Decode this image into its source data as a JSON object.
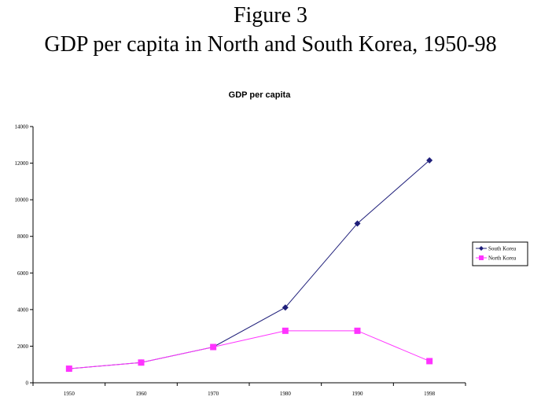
{
  "figure": {
    "title": "Figure 3",
    "subtitle": "GDP per capita in North and South Korea, 1950-98"
  },
  "chart_data": {
    "type": "line",
    "title": "GDP per capita",
    "xlabel": "",
    "ylabel": "",
    "categories": [
      "1950",
      "1960",
      "1970",
      "1980",
      "1990",
      "1998"
    ],
    "ylim": [
      0,
      14000
    ],
    "yticks": [
      0,
      2000,
      4000,
      6000,
      8000,
      10000,
      12000,
      14000
    ],
    "grid": false,
    "legend_position": "right",
    "series": [
      {
        "name": "South Korea",
        "values": [
          770,
          1105,
          1954,
          4114,
          8704,
          12152
        ],
        "color": "#1f1f7a",
        "marker": "diamond"
      },
      {
        "name": "North Korea",
        "values": [
          770,
          1105,
          1954,
          2841,
          2841,
          1183
        ],
        "color": "#ff33ff",
        "marker": "square"
      }
    ]
  }
}
